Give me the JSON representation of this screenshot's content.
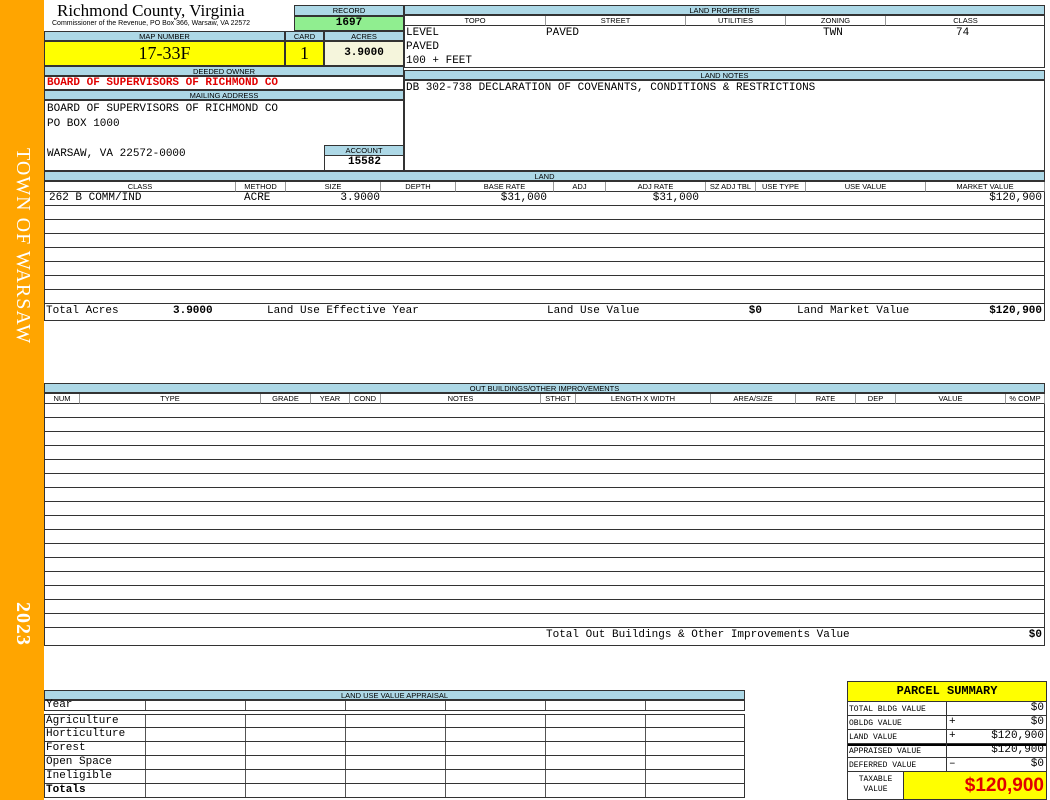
{
  "sidebar": {
    "town": "TOWN OF WARSAW",
    "year": "2023",
    "color": "#FFA500"
  },
  "header": {
    "title": "Richmond County, Virginia",
    "subtitle": "Commissioner of the Revenue, PO Box 366, Warsaw, VA 22572"
  },
  "record": {
    "label": "RECORD",
    "value": "1697"
  },
  "map": {
    "label": "MAP NUMBER",
    "value": "17-33F"
  },
  "card": {
    "label": "CARD",
    "value": "1"
  },
  "acres": {
    "label": "ACRES",
    "value": "3.9000"
  },
  "owner": {
    "label": "DEEDED OWNER",
    "value": "BOARD OF SUPERVISORS OF RICHMOND CO"
  },
  "mailing": {
    "label": "MAILING ADDRESS",
    "line1": "BOARD OF SUPERVISORS OF RICHMOND CO",
    "line2": "PO BOX 1000",
    "line3": "WARSAW, VA 22572-0000"
  },
  "account": {
    "label": "ACCOUNT",
    "value": "15582"
  },
  "land_properties": {
    "label": "LAND PROPERTIES",
    "headers": [
      "TOPO",
      "STREET",
      "UTILITIES",
      "ZONING",
      "CLASS"
    ],
    "topo": [
      "LEVEL",
      "PAVED",
      "100 + FEET"
    ],
    "street": "PAVED",
    "utilities": "",
    "zoning": "TWN",
    "class": "74"
  },
  "land_notes": {
    "label": "LAND NOTES",
    "text": "DB 302-738 DECLARATION OF COVENANTS, CONDITIONS & RESTRICTIONS"
  },
  "land": {
    "label": "LAND",
    "headers": [
      "CLASS",
      "METHOD",
      "SIZE",
      "DEPTH",
      "BASE RATE",
      "ADJ",
      "ADJ RATE",
      "SZ ADJ TBL",
      "USE TYPE",
      "USE VALUE",
      "MARKET VALUE"
    ],
    "rows": [
      {
        "class": "262 B COMM/IND",
        "method": "ACRE",
        "size": "3.9000",
        "depth": "",
        "base_rate": "$31,000",
        "adj": "",
        "adj_rate": "$31,000",
        "sz_adj": "",
        "use_type": "",
        "use_value": "",
        "market_value": "$120,900"
      }
    ],
    "totals": {
      "acres_label": "Total Acres",
      "acres": "3.9000",
      "eff_year_label": "Land Use Effective Year",
      "eff_year": "",
      "use_value_label": "Land Use Value",
      "use_value": "$0",
      "market_label": "Land Market Value",
      "market": "$120,900"
    }
  },
  "outbuildings": {
    "label": "OUT BUILDINGS/OTHER IMPROVEMENTS",
    "headers": [
      "NUM",
      "TYPE",
      "GRADE",
      "YEAR",
      "COND",
      "NOTES",
      "STHGT",
      "LENGTH X WIDTH",
      "AREA/SIZE",
      "RATE",
      "DEP",
      "VALUE",
      "% COMP"
    ],
    "total_label": "Total Out Buildings & Other Improvements Value",
    "total": "$0"
  },
  "land_use": {
    "label": "LAND USE VALUE APPRAISAL",
    "year_label": "Year",
    "rows": [
      "Agriculture",
      "Horticulture",
      "Forest",
      "Open Space",
      "Ineligible",
      "Totals"
    ]
  },
  "parcel_summary": {
    "title": "PARCEL SUMMARY",
    "rows": [
      {
        "label": "TOTAL BLDG VALUE",
        "op": "",
        "value": "$0"
      },
      {
        "label": "OBLDG VALUE",
        "op": "+",
        "value": "$0"
      },
      {
        "label": "LAND VALUE",
        "op": "+",
        "value": "$120,900"
      },
      {
        "label": "APPRAISED VALUE",
        "op": "",
        "value": "$120,900"
      },
      {
        "label": "DEFERRED VALUE",
        "op": "–",
        "value": "$0"
      }
    ],
    "taxable_label": "TAXABLE VALUE",
    "taxable": "$120,900"
  }
}
